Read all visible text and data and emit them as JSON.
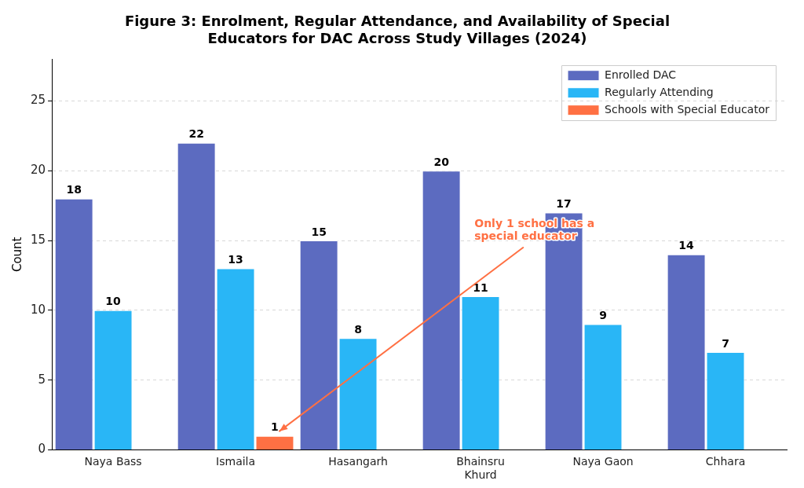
{
  "chart_data": {
    "type": "bar",
    "title": "Figure 3: Enrolment, Regular Attendance, and Availability of Special Educators for DAC Across Study Villages (2024)",
    "ylabel": "Count",
    "categories": [
      "Naya Bass",
      "Ismaila",
      "Hasangarh",
      "Bhainsru Khurd",
      "Naya Gaon",
      "Chhara"
    ],
    "series": [
      {
        "name": "Enrolled DAC",
        "color": "#5c6bc0",
        "values": [
          18,
          22,
          15,
          20,
          17,
          14
        ],
        "value_labels": [
          "18",
          "22",
          "15",
          "20",
          "17",
          "14"
        ]
      },
      {
        "name": "Regularly Attending",
        "color": "#29b6f6",
        "values": [
          10,
          13,
          8,
          11,
          9,
          7
        ],
        "value_labels": [
          "10",
          "13",
          "8",
          "11",
          "9",
          "7"
        ]
      },
      {
        "name": "Schools with Special Educator",
        "color": "#ff7043",
        "values": [
          0,
          1,
          0,
          0,
          0,
          0
        ],
        "value_labels": [
          null,
          "1",
          null,
          null,
          null,
          null
        ]
      }
    ],
    "ylim": [
      0,
      28
    ],
    "yticks": [
      0,
      5,
      10,
      15,
      20,
      25
    ],
    "grid": "y",
    "legend": "top right",
    "annotations": [
      "Only 1 school has a special educator"
    ]
  }
}
